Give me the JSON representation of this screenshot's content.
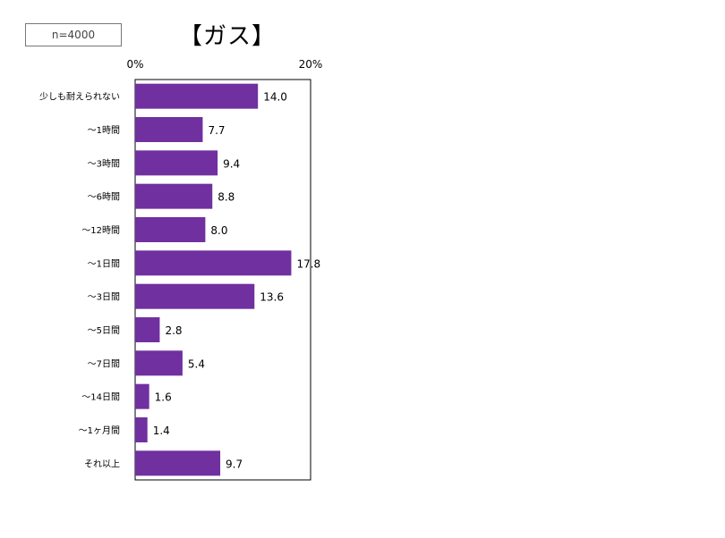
{
  "sample_label": "n=4000",
  "title": "【ガス】",
  "chart_data": {
    "type": "bar",
    "orientation": "horizontal",
    "title": "【ガス】",
    "note": "n=4000",
    "xlabel": "",
    "ylabel": "",
    "xlim": [
      0,
      20
    ],
    "x_ticks": [
      "0%",
      "20%"
    ],
    "bar_color": "#7030a0",
    "categories": [
      "少しも耐えられない",
      "～1時間",
      "～3時間",
      "～6時間",
      "～12時間",
      "～1日間",
      "～3日間",
      "～5日間",
      "～7日間",
      "～14日間",
      "～1ヶ月間",
      "それ以上"
    ],
    "values": [
      14.0,
      7.7,
      9.4,
      8.8,
      8.0,
      17.8,
      13.6,
      2.8,
      5.4,
      1.6,
      1.4,
      9.7
    ],
    "value_labels": [
      "14.0",
      "7.7",
      "9.4",
      "8.8",
      "8.0",
      "17.8",
      "13.6",
      "2.8",
      "5.4",
      "1.6",
      "1.4",
      "9.7"
    ]
  }
}
